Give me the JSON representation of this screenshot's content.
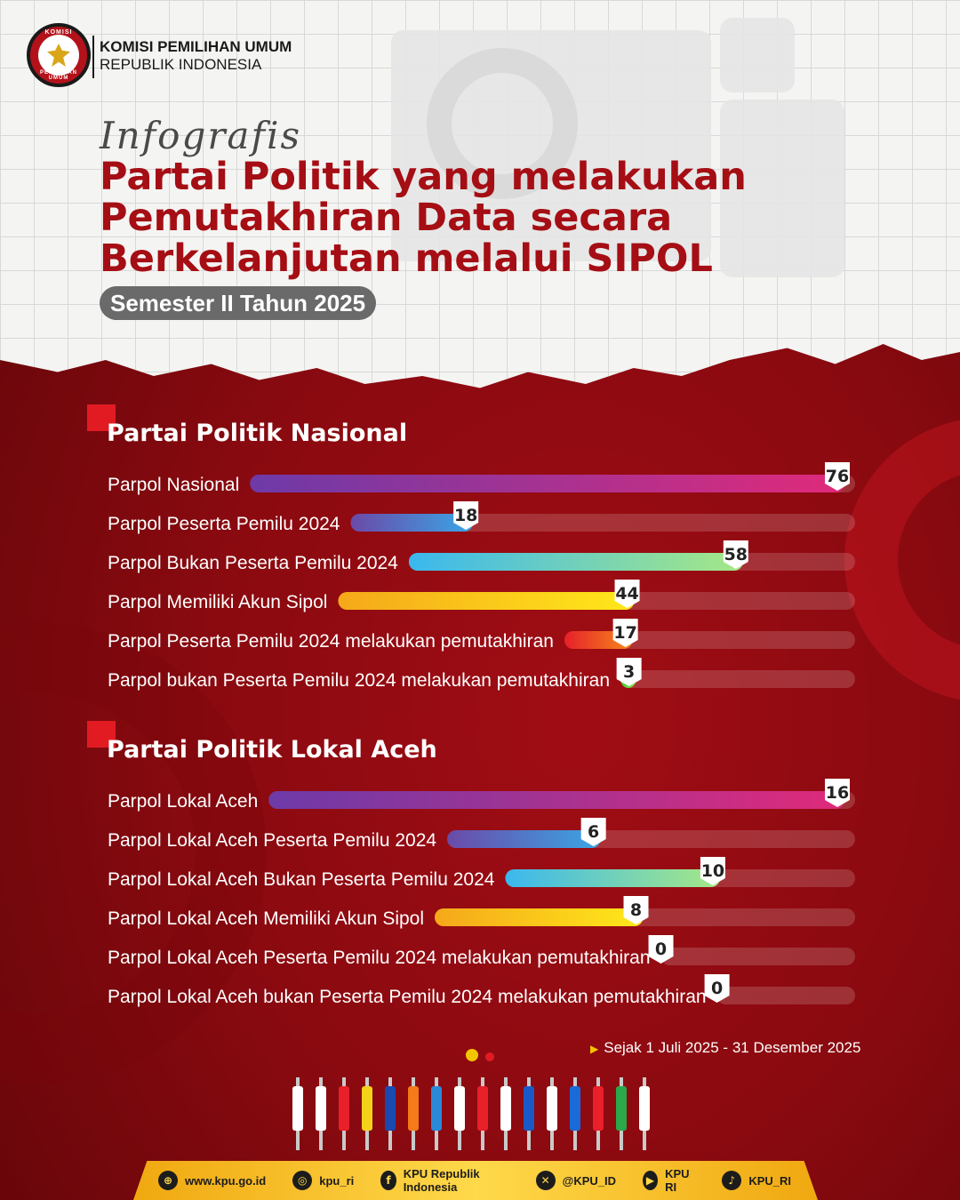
{
  "header": {
    "logo_top": "KOMISI",
    "logo_bottom": "PEMILIHAN UMUM",
    "org_line1": "KOMISI PEMILIHAN UMUM",
    "org_line2": "REPUBLIK INDONESIA"
  },
  "script_label": "Infografis",
  "title_lines": [
    "Partai Politik yang melakukan",
    "Pemutakhiran Data secara",
    "Berkelanjutan melalui SIPOL"
  ],
  "subtitle": "Semester II Tahun 2025",
  "chart_data": [
    {
      "type": "bar",
      "title": "Partai Politik Nasional",
      "categories": [
        "Parpol Nasional",
        "Parpol Peserta Pemilu 2024",
        "Parpol Bukan Peserta Pemilu 2024",
        "Parpol Memiliki Akun Sipol",
        "Parpol Peserta Pemilu 2024 melakukan pemutakhiran",
        "Parpol bukan Peserta Pemilu 2024 melakukan pemutakhiran"
      ],
      "values": [
        76,
        18,
        58,
        44,
        17,
        3
      ],
      "ylim": [
        0,
        76
      ],
      "colors": [
        [
          "#6d3aa8",
          "#e02a7a"
        ],
        [
          "#6a4aa8",
          "#3aa6e6"
        ],
        [
          "#3ab8ee",
          "#a6e886"
        ],
        [
          "#f5a81a",
          "#ffe81a"
        ],
        [
          "#e6202a",
          "#f78a1a"
        ],
        [
          "#4ac83a",
          "#8ae04a"
        ]
      ]
    },
    {
      "type": "bar",
      "title": "Partai Politik Lokal Aceh",
      "categories": [
        "Parpol Lokal Aceh",
        "Parpol Lokal Aceh Peserta Pemilu 2024",
        "Parpol Lokal Aceh Bukan Peserta Pemilu 2024",
        "Parpol Lokal Aceh Memiliki Akun Sipol",
        "Parpol Lokal Aceh Peserta Pemilu 2024 melakukan pemutakhiran",
        "Parpol Lokal Aceh bukan Peserta Pemilu 2024 melakukan pemutakhiran"
      ],
      "values": [
        16,
        6,
        10,
        8,
        0,
        0
      ],
      "ylim": [
        0,
        16
      ],
      "colors": [
        [
          "#6d3aa8",
          "#e02a7a"
        ],
        [
          "#6a4aa8",
          "#3aa6e6"
        ],
        [
          "#3ab8ee",
          "#a6e886"
        ],
        [
          "#f5a81a",
          "#ffe81a"
        ],
        [
          "#e6202a",
          "#f78a1a"
        ],
        [
          "#4ac83a",
          "#8ae04a"
        ]
      ]
    }
  ],
  "period": "Sejak 1 Juli 2025 - 31 Desember 2025",
  "flag_colors": [
    "#ffffff",
    "#ffffff",
    "#e8202a",
    "#f5d21a",
    "#1a4ab0",
    "#f57a1a",
    "#2a8ad8",
    "#ffffff",
    "#e8202a",
    "#ffffff",
    "#1a5ac8",
    "#ffffff",
    "#1a6ad8",
    "#e8202a",
    "#2aa84a",
    "#ffffff"
  ],
  "footer": [
    {
      "icon": "globe-icon",
      "glyph": "⊕",
      "label": "www.kpu.go.id"
    },
    {
      "icon": "instagram-icon",
      "glyph": "◎",
      "label": "kpu_ri"
    },
    {
      "icon": "facebook-icon",
      "glyph": "f",
      "label": "KPU Republik Indonesia"
    },
    {
      "icon": "x-icon",
      "glyph": "✕",
      "label": "@KPU_ID"
    },
    {
      "icon": "youtube-icon",
      "glyph": "▶",
      "label": "KPU RI"
    },
    {
      "icon": "tiktok-icon",
      "glyph": "♪",
      "label": "KPU_RI"
    }
  ]
}
